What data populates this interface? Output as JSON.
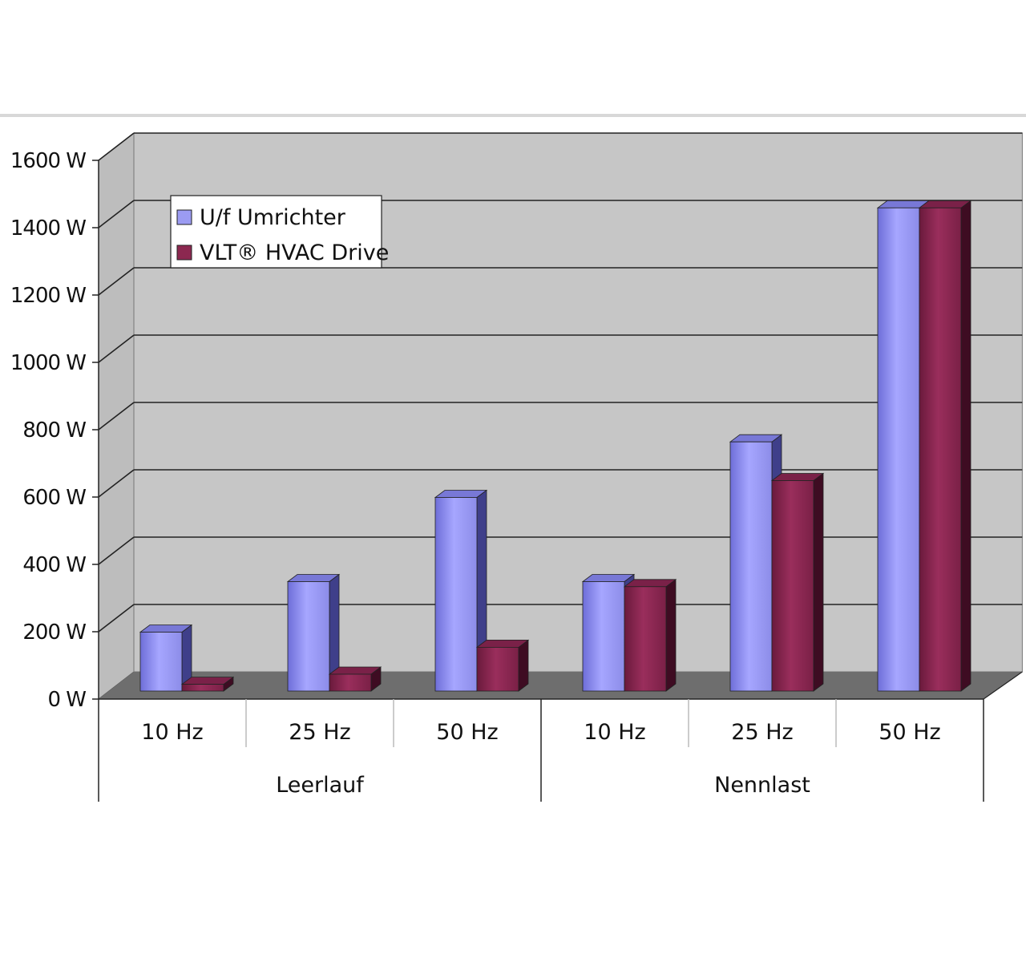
{
  "chart_data": {
    "type": "bar",
    "groups": [
      {
        "label": "Leerlauf",
        "categories": [
          "10 Hz",
          "25 Hz",
          "50 Hz"
        ]
      },
      {
        "label": "Nennlast",
        "categories": [
          "10 Hz",
          "25 Hz",
          "50 Hz"
        ]
      }
    ],
    "series": [
      {
        "name": "U/f Umrichter",
        "color": "#9b9bf2",
        "values": [
          175,
          325,
          575,
          325,
          740,
          1435
        ]
      },
      {
        "name": "VLT® HVAC Drive",
        "color": "#8c2850",
        "values": [
          20,
          50,
          130,
          310,
          625,
          1435
        ]
      }
    ],
    "y_ticks": [
      "0 W",
      "200 W",
      "400 W",
      "600 W",
      "800 W",
      "1000 W",
      "1200 W",
      "1400 W",
      "1600 W"
    ],
    "ylim": [
      0,
      1600
    ],
    "grid": true,
    "legend_position": "top-left",
    "style": "3d-clustered-column"
  }
}
